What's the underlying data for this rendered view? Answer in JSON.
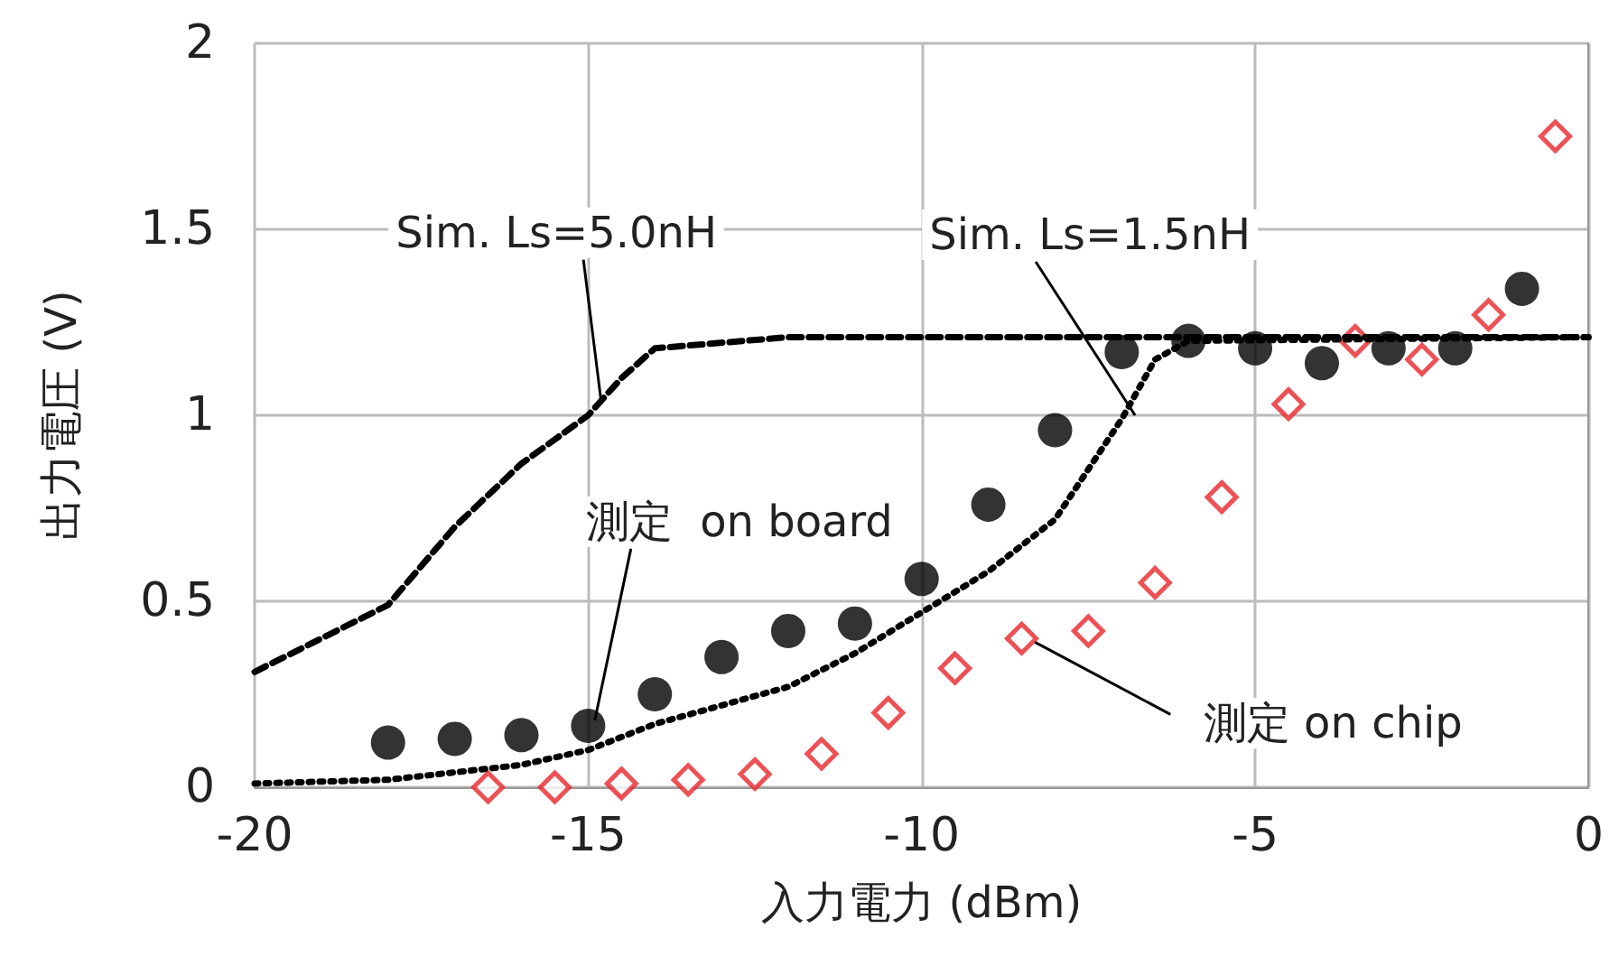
{
  "chart_data": {
    "type": "scatter",
    "xlabel": "入力電力 (dBm)",
    "ylabel": "出力電圧 (V)",
    "xlim": [
      -20,
      0
    ],
    "xticks": [
      -20,
      -15,
      -10,
      -5,
      0
    ],
    "ylim": [
      0,
      2
    ],
    "yticks": [
      0,
      0.5,
      1,
      1.5,
      2
    ],
    "grid": true,
    "series": [
      {
        "type": "line",
        "line_style": "dashed",
        "marker": "none",
        "color": "#000000",
        "x": [
          -20,
          -18,
          -17,
          -16,
          -15,
          -14.5,
          -14,
          -12,
          0
        ],
        "values": [
          0.31,
          0.49,
          0.7,
          0.87,
          1.0,
          1.1,
          1.18,
          1.21,
          1.21
        ]
      },
      {
        "type": "line",
        "line_style": "dotted",
        "marker": "none",
        "color": "#000000",
        "x": [
          -20,
          -18,
          -16,
          -15,
          -14,
          -13,
          -12,
          -11,
          -10,
          -9,
          -8,
          -7,
          -6.5,
          -6,
          0
        ],
        "values": [
          0.01,
          0.02,
          0.06,
          0.1,
          0.17,
          0.22,
          0.27,
          0.36,
          0.47,
          0.58,
          0.72,
          0.99,
          1.15,
          1.2,
          1.21
        ]
      },
      {
        "marker": "circle",
        "color": "#000000",
        "x": [
          -18,
          -17,
          -16,
          -15,
          -14,
          -13,
          -12,
          -11,
          -10,
          -9,
          -8,
          -7,
          -6,
          -5,
          -4,
          -3,
          -2,
          -1
        ],
        "values": [
          0.12,
          0.13,
          0.14,
          0.165,
          0.25,
          0.35,
          0.42,
          0.44,
          0.56,
          0.76,
          0.96,
          1.17,
          1.2,
          1.18,
          1.14,
          1.18,
          1.18,
          1.34
        ]
      },
      {
        "marker": "diamond",
        "color": "#e8262a",
        "x": [
          -16.5,
          -15.5,
          -14.5,
          -13.5,
          -12.5,
          -11.5,
          -10.5,
          -9.5,
          -8.5,
          -7.5,
          -6.5,
          -5.5,
          -4.5,
          -3.5,
          -2.5,
          -1.5,
          -0.5
        ],
        "values": [
          0,
          0,
          0.01,
          0.02,
          0.035,
          0.09,
          0.2,
          0.32,
          0.4,
          0.42,
          0.55,
          0.78,
          1.03,
          1.2,
          1.15,
          1.27,
          1.75
        ]
      }
    ],
    "annotations": [
      {
        "text": "Sim. Ls=5.0nH",
        "x": -14.8,
        "y": 1.03
      },
      {
        "text": "Sim. Ls=1.5nH",
        "x": -6.8,
        "y": 1.0
      },
      {
        "text": "測定  on board",
        "x": -14.9,
        "y": 0.18
      },
      {
        "text": "測定 on chip",
        "x": -8.3,
        "y": 0.39
      }
    ]
  }
}
